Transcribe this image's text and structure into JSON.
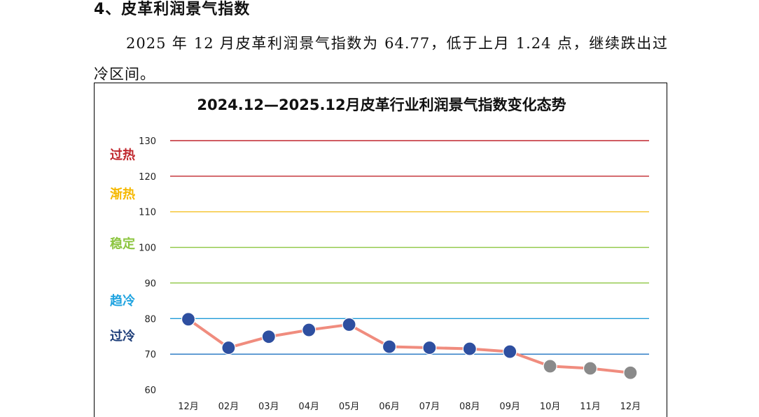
{
  "section": {
    "title": "4、皮革利润景气指数",
    "paragraph": "2025 年 12 月皮革利润景气指数为 64.77，低于上月 1.24 点，继续跌出过冷区间。"
  },
  "chart_data": {
    "type": "line",
    "title": "2024.12—2025.12月皮革行业利润景气指数变化态势",
    "categories": [
      "12月",
      "02月",
      "03月",
      "04月",
      "05月",
      "06月",
      "07月",
      "08月",
      "09月",
      "10月",
      "11月",
      "12月"
    ],
    "values": [
      79.8,
      71.8,
      74.9,
      76.8,
      78.3,
      72.1,
      71.8,
      71.5,
      70.7,
      66.6,
      66.0,
      64.77
    ],
    "point_colors": [
      "#2e4fa0",
      "#2e4fa0",
      "#2e4fa0",
      "#2e4fa0",
      "#2e4fa0",
      "#2e4fa0",
      "#2e4fa0",
      "#2e4fa0",
      "#2e4fa0",
      "#8a8a8a",
      "#8a8a8a",
      "#8a8a8a"
    ],
    "line_color": "#f08c7e",
    "ylim": [
      60,
      130
    ],
    "yticks": [
      60,
      70,
      80,
      90,
      100,
      110,
      120,
      130
    ],
    "grid": false,
    "xlabel": "",
    "ylabel": "",
    "reference_lines": [
      {
        "value": 130,
        "color": "#c0272d"
      },
      {
        "value": 120,
        "color": "#c0272d"
      },
      {
        "value": 110,
        "color": "#f5c22a"
      },
      {
        "value": 100,
        "color": "#8dc641"
      },
      {
        "value": 90,
        "color": "#8dc641"
      },
      {
        "value": 80,
        "color": "#1f9bd7"
      },
      {
        "value": 70,
        "color": "#1f73c0"
      }
    ],
    "zones": [
      {
        "label": "过热",
        "at": 126,
        "color": "#c0272d"
      },
      {
        "label": "渐热",
        "at": 115,
        "color": "#f5b800"
      },
      {
        "label": "稳定",
        "at": 101,
        "color": "#8dc641"
      },
      {
        "label": "趋冷",
        "at": 85,
        "color": "#1fa3e0"
      },
      {
        "label": "过冷",
        "at": 75,
        "color": "#1f3f7a"
      }
    ]
  }
}
